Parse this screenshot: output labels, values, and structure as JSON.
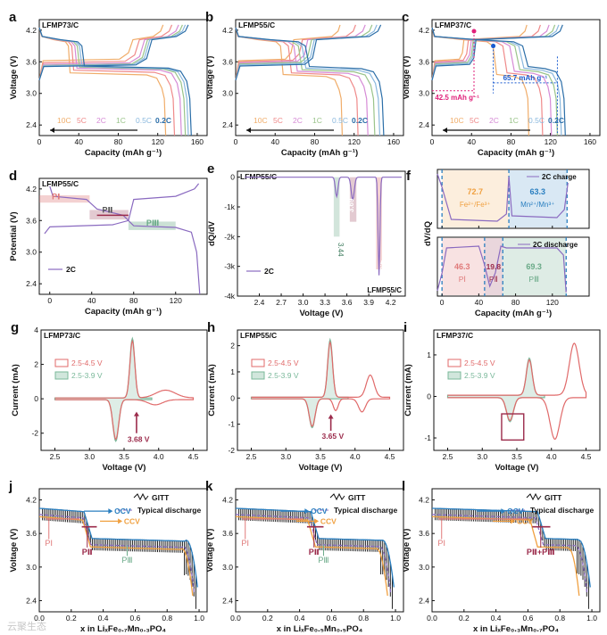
{
  "colors": {
    "rates": [
      "#f0ad6a",
      "#ef8a8a",
      "#d68bd6",
      "#9ac48a",
      "#8ab8de",
      "#2b6ea8"
    ],
    "ocv": "#2a7fc0",
    "ccv": "#f0a040",
    "pI": "#e07a7a",
    "pII": "#9b2b4b",
    "pIII": "#6aaa88",
    "cv_red": "#e06a6a",
    "cv_green": "#7ab89a",
    "gitt": "#222222",
    "typical": "#8a6ac0",
    "d2c": "#8a6ac0",
    "purple_arrow": "#9b2b4b",
    "magenta": "#e0207a",
    "blue_marker": "#1a5bd0"
  },
  "rate_labels": [
    "10C",
    "5C",
    "2C",
    "1C",
    "0.5C",
    "0.2C"
  ],
  "chart_data": [
    {
      "panel": "a",
      "type": "line",
      "title": "LFMP73/C",
      "xlabel": "Capacity (mAh g⁻¹)",
      "ylabel": "Voltage (V)",
      "xlim": [
        0,
        170
      ],
      "ylim": [
        2.2,
        4.4
      ],
      "xticks": [
        "0",
        "40",
        "80",
        "120",
        "160"
      ],
      "yticks": [
        "2.4",
        "3.0",
        "3.6",
        "4.2"
      ],
      "series": [
        {
          "name": "10C",
          "capacity": 128,
          "plateau": 3.35,
          "charge_plateau": 3.62
        },
        {
          "name": "5C",
          "capacity": 137,
          "plateau": 3.4,
          "charge_plateau": 3.58
        },
        {
          "name": "2C",
          "capacity": 144,
          "plateau": 3.44,
          "charge_plateau": 3.55
        },
        {
          "name": "1C",
          "capacity": 148,
          "plateau": 3.46,
          "charge_plateau": 3.53
        },
        {
          "name": "0.5C",
          "capacity": 151,
          "plateau": 3.47,
          "charge_plateau": 3.52
        },
        {
          "name": "0.2C",
          "capacity": 154,
          "plateau": 3.48,
          "charge_plateau": 3.51
        }
      ]
    },
    {
      "panel": "b",
      "type": "line",
      "title": "LFMP55/C",
      "xlabel": "Capacity (mAh g⁻¹)",
      "ylabel": "Voltage (V)",
      "xlim": [
        0,
        170
      ],
      "ylim": [
        2.2,
        4.4
      ],
      "xticks": [
        "0",
        "40",
        "80",
        "120",
        "160"
      ],
      "yticks": [
        "2.4",
        "3.0",
        "3.6",
        "4.2"
      ],
      "series": [
        {
          "name": "10C",
          "capacity": 108
        },
        {
          "name": "5C",
          "capacity": 124
        },
        {
          "name": "2C",
          "capacity": 134
        },
        {
          "name": "1C",
          "capacity": 141
        },
        {
          "name": "0.5C",
          "capacity": 146
        },
        {
          "name": "0.2C",
          "capacity": 150
        }
      ]
    },
    {
      "panel": "c",
      "type": "line",
      "title": "LFMP37/C",
      "xlabel": "Capacity (mAh g⁻¹)",
      "ylabel": "Voltage (V)",
      "xlim": [
        0,
        170
      ],
      "ylim": [
        2.2,
        4.4
      ],
      "xticks": [
        "0",
        "40",
        "80",
        "120",
        "160"
      ],
      "yticks": [
        "2.4",
        "3.0",
        "3.6",
        "4.2"
      ],
      "annotations": [
        "42.5 mAh g⁻¹",
        "65.7 mAh g⁻¹"
      ],
      "series": [
        {
          "name": "10C",
          "capacity": 98
        },
        {
          "name": "5C",
          "capacity": 112
        },
        {
          "name": "2C",
          "capacity": 121
        },
        {
          "name": "1C",
          "capacity": 127
        },
        {
          "name": "0.5C",
          "capacity": 131
        },
        {
          "name": "0.2C",
          "capacity": 135
        }
      ]
    },
    {
      "panel": "d",
      "type": "line",
      "title": "LFMP55/C",
      "xlabel": "Capacity (mAh g⁻¹)",
      "ylabel": "Potential (V)",
      "xlim": [
        -10,
        150
      ],
      "ylim": [
        2.2,
        4.4
      ],
      "xticks": [
        "0",
        "40",
        "80",
        "120"
      ],
      "yticks": [
        "2.4",
        "3.0",
        "3.6",
        "4.2"
      ],
      "legend": "2C",
      "regions": [
        "PⅠ",
        "PⅡ",
        "PⅢ"
      ]
    },
    {
      "panel": "e",
      "type": "line",
      "title": "LFMP55/C",
      "xlabel": "Voltage (V)",
      "ylabel": "dQ/dV",
      "xlim": [
        2.1,
        4.4
      ],
      "ylim": [
        -4,
        0.2
      ],
      "xticks": [
        "2.4",
        "2.7",
        "3.0",
        "3.3",
        "3.6",
        "3.9",
        "4.2"
      ],
      "yticks": [
        "0",
        "-1k",
        "-2k",
        "-3k",
        "-4k"
      ],
      "legend": "2C",
      "peaks": [
        "3.44",
        "3.69",
        "4.0"
      ]
    },
    {
      "panel": "f",
      "type": "line",
      "xlabel": "Capacity (mAh g⁻¹)",
      "ylabel": "dV/dQ",
      "xticks": [
        "0",
        "40",
        "80",
        "120"
      ],
      "charge": {
        "legend": "2C charge",
        "values": [
          "72.7",
          "63.3"
        ],
        "labels": [
          "Fe²⁺/Fe³⁺",
          "Mn²⁺/Mn³⁺"
        ]
      },
      "discharge": {
        "legend": "2C discharge",
        "values": [
          "46.3",
          "19.8",
          "69.3"
        ],
        "labels": [
          "PⅠ",
          "PⅡ",
          "PⅢ"
        ]
      }
    },
    {
      "panel": "g",
      "type": "line",
      "title": "LFMP73/C",
      "xlabel": "Voltage (V)",
      "ylabel": "Current (mA)",
      "xlim": [
        2.3,
        4.7
      ],
      "ylim": [
        -3,
        4
      ],
      "xticks": [
        "2.5",
        "3.0",
        "3.5",
        "4.0",
        "4.5"
      ],
      "yticks": [
        "4",
        "2",
        "0",
        "-2"
      ],
      "legend": [
        "2.5-4.5 V",
        "2.5-3.9 V"
      ],
      "annotation": "3.68 V"
    },
    {
      "panel": "h",
      "type": "line",
      "title": "LFMP55/C",
      "xlabel": "Voltage (V)",
      "ylabel": "Current (mA)",
      "xlim": [
        2.3,
        4.7
      ],
      "ylim": [
        -2,
        2.6
      ],
      "xticks": [
        "2.5",
        "3.0",
        "3.5",
        "4.0",
        "4.5"
      ],
      "yticks": [
        "2",
        "1",
        "0",
        "-1",
        "-2"
      ],
      "legend": [
        "2.5-4.5 V",
        "2.5-3.9 V"
      ],
      "annotation": "3.65 V"
    },
    {
      "panel": "i",
      "type": "line",
      "title": "LFMP37/C",
      "xlabel": "Voltage (V)",
      "ylabel": "Current (mA)",
      "xlim": [
        2.3,
        4.7
      ],
      "ylim": [
        -1.3,
        1.6
      ],
      "xticks": [
        "2.5",
        "3.0",
        "3.5",
        "4.0",
        "4.5"
      ],
      "yticks": [
        "1",
        "0",
        "-1"
      ],
      "legend": [
        "2.5-4.5 V",
        "2.5-3.9 V"
      ]
    },
    {
      "panel": "j",
      "type": "line",
      "xlabel": "x in LiₓFe₀.₇Mn₀.₃PO₄",
      "ylabel": "Voltage (V)",
      "xlim": [
        0,
        1.05
      ],
      "ylim": [
        2.2,
        4.4
      ],
      "xticks": [
        "0.0",
        "0.2",
        "0.4",
        "0.6",
        "0.8",
        "1.0"
      ],
      "yticks": [
        "2.4",
        "3.0",
        "3.6",
        "4.2"
      ],
      "legend": [
        "GITT",
        "Typical discharge"
      ],
      "labels": [
        "OCV",
        "CCV",
        "PⅠ",
        "PⅡ",
        "PⅢ"
      ]
    },
    {
      "panel": "k",
      "type": "line",
      "xlabel": "x in LiₓFe₀.₅Mn₀.₅PO₄",
      "ylabel": "Voltage (V)",
      "xlim": [
        0,
        1.05
      ],
      "ylim": [
        2.2,
        4.4
      ],
      "xticks": [
        "0.0",
        "0.2",
        "0.4",
        "0.6",
        "0.8",
        "1.0"
      ],
      "yticks": [
        "2.4",
        "3.0",
        "3.6",
        "4.2"
      ],
      "legend": [
        "GITT",
        "Typical discharge"
      ],
      "labels": [
        "OCV",
        "CCV",
        "PⅠ",
        "PⅡ",
        "PⅢ"
      ]
    },
    {
      "panel": "l",
      "type": "line",
      "xlabel": "x in LiₓFe₀.₃Mn₀.₇PO₄",
      "ylabel": "Voltage (V)",
      "xlim": [
        0,
        1.05
      ],
      "ylim": [
        2.2,
        4.4
      ],
      "xticks": [
        "0.0",
        "0.2",
        "0.4",
        "0.6",
        "0.8",
        "1.0"
      ],
      "yticks": [
        "2.4",
        "3.0",
        "3.6",
        "4.2"
      ],
      "legend": [
        "GITT",
        "Typical discharge"
      ],
      "labels": [
        "OCV",
        "CCV",
        "PⅠ",
        "PⅡ+PⅢ"
      ]
    }
  ],
  "watermark": "云聚生态"
}
